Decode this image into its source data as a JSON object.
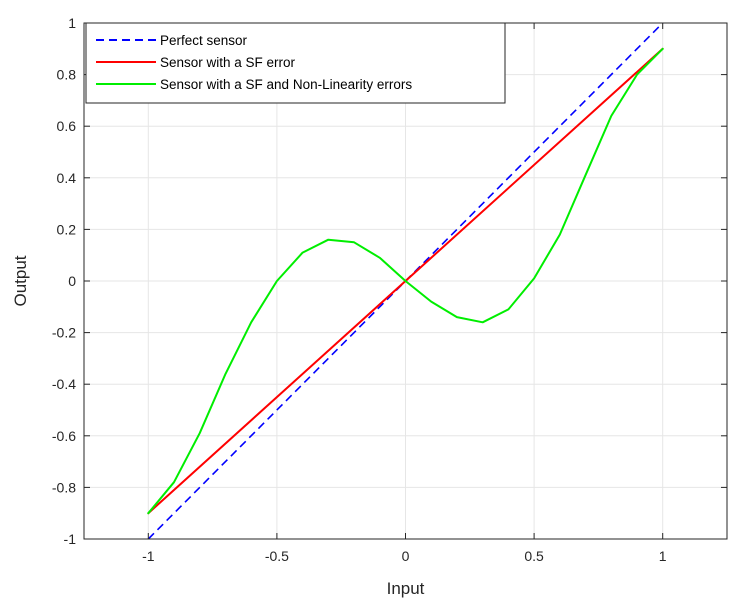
{
  "chart_data": {
    "type": "line",
    "title": "",
    "xlabel": "Input",
    "ylabel": "Output",
    "xlim": [
      -1.25,
      1.25
    ],
    "ylim": [
      -1,
      1
    ],
    "xticks": [
      -1,
      -0.5,
      0,
      0.5,
      1
    ],
    "xtick_labels": [
      "-1",
      "-0.5",
      "0",
      "0.5",
      "1"
    ],
    "yticks": [
      -1,
      -0.8,
      -0.6,
      -0.4,
      -0.2,
      0,
      0.2,
      0.4,
      0.6,
      0.8,
      1
    ],
    "ytick_labels": [
      "-1",
      "-0.8",
      "-0.6",
      "-0.4",
      "-0.2",
      "0",
      "0.2",
      "0.4",
      "0.6",
      "0.8",
      "1"
    ],
    "grid": true,
    "legend_position": "top-left",
    "series": [
      {
        "name": "Perfect sensor",
        "color": "#0000ff",
        "style": "dashed",
        "x": [
          -1,
          1
        ],
        "y": [
          -1,
          1
        ]
      },
      {
        "name": "Sensor with a SF error",
        "color": "#ff0000",
        "style": "solid",
        "x": [
          -1,
          1
        ],
        "y": [
          -0.9,
          0.9
        ]
      },
      {
        "name": "Sensor with a SF and Non-Linearity errors",
        "color": "#00ee00",
        "style": "solid",
        "x": [
          -1,
          -0.9,
          -0.8,
          -0.7,
          -0.6,
          -0.5,
          -0.4,
          -0.3,
          -0.2,
          -0.1,
          0,
          0.1,
          0.2,
          0.3,
          0.4,
          0.5,
          0.6,
          0.7,
          0.8,
          0.9,
          1
        ],
        "y": [
          -0.9,
          -0.78,
          -0.59,
          -0.36,
          -0.16,
          0,
          0.11,
          0.16,
          0.15,
          0.09,
          0,
          -0.08,
          -0.14,
          -0.16,
          -0.11,
          0.01,
          0.18,
          0.41,
          0.64,
          0.8,
          0.9
        ]
      }
    ]
  }
}
